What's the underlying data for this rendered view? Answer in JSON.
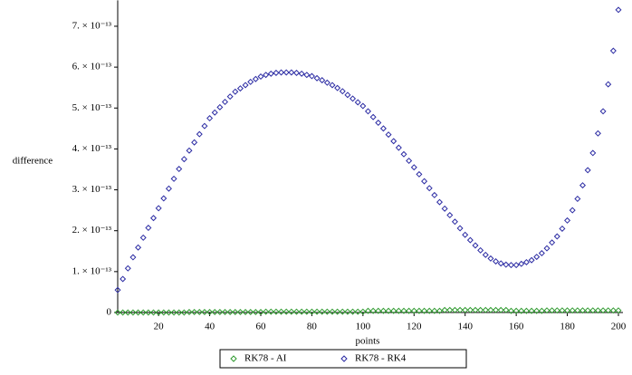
{
  "chart_data": {
    "type": "scatter",
    "x_label": "points",
    "y_label": "difference",
    "x": [
      4,
      6,
      8,
      10,
      12,
      14,
      16,
      18,
      20,
      22,
      24,
      26,
      28,
      30,
      32,
      34,
      36,
      38,
      40,
      42,
      44,
      46,
      48,
      50,
      52,
      54,
      56,
      58,
      60,
      62,
      64,
      66,
      68,
      70,
      72,
      74,
      76,
      78,
      80,
      82,
      84,
      86,
      88,
      90,
      92,
      94,
      96,
      98,
      100,
      102,
      104,
      106,
      108,
      110,
      112,
      114,
      116,
      118,
      120,
      122,
      124,
      126,
      128,
      130,
      132,
      134,
      136,
      138,
      140,
      142,
      144,
      146,
      148,
      150,
      152,
      154,
      156,
      158,
      160,
      162,
      164,
      166,
      168,
      170,
      172,
      174,
      176,
      178,
      180,
      182,
      184,
      186,
      188,
      190,
      192,
      194,
      196,
      198,
      200
    ],
    "series": [
      {
        "name": "RK78 - AI",
        "color": "#2f9a2f",
        "values": [
          0,
          0,
          0,
          0,
          0,
          0,
          0,
          0,
          0,
          0,
          0,
          0,
          0,
          0,
          1e-15,
          1e-15,
          1e-15,
          1e-15,
          1e-15,
          1e-15,
          1e-15,
          1e-15,
          1e-15,
          1e-15,
          1e-15,
          1e-15,
          1e-15,
          1e-15,
          1e-15,
          2e-15,
          2e-15,
          2e-15,
          2e-15,
          2e-15,
          2e-15,
          2e-15,
          2e-15,
          2e-15,
          2e-15,
          2e-15,
          2e-15,
          2e-15,
          2e-15,
          2e-15,
          2e-15,
          2e-15,
          2e-15,
          2e-15,
          2e-15,
          4e-15,
          4e-15,
          4e-15,
          4e-15,
          4e-15,
          4e-15,
          4e-15,
          4e-15,
          4e-15,
          4e-15,
          4e-15,
          4e-15,
          4e-15,
          4e-15,
          4e-15,
          6e-15,
          6e-15,
          6e-15,
          6e-15,
          6e-15,
          6e-15,
          6e-15,
          6e-15,
          6e-15,
          6e-15,
          6e-15,
          6e-15,
          6e-15,
          4e-15,
          4e-15,
          4e-15,
          4e-15,
          4e-15,
          4e-15,
          4e-15,
          5e-15,
          5e-15,
          5e-15,
          5e-15,
          5e-15,
          5e-15,
          5e-15,
          5e-15,
          5e-15,
          5e-15,
          5e-15,
          5e-15,
          5e-15,
          5e-15,
          5e-15
        ]
      },
      {
        "name": "RK78 - RK4",
        "color": "#2b2ba3",
        "values": [
          5.5e-14,
          8.2e-14,
          1.08e-13,
          1.35e-13,
          1.59e-13,
          1.83e-13,
          2.07e-13,
          2.31e-13,
          2.55e-13,
          2.79e-13,
          3.03e-13,
          3.27e-13,
          3.51e-13,
          3.75e-13,
          3.96e-13,
          4.16e-13,
          4.36e-13,
          4.56e-13,
          4.75e-13,
          4.89e-13,
          5.02e-13,
          5.15e-13,
          5.28e-13,
          5.4e-13,
          5.48e-13,
          5.56e-13,
          5.64e-13,
          5.71e-13,
          5.77e-13,
          5.81e-13,
          5.84e-13,
          5.86e-13,
          5.87e-13,
          5.87e-13,
          5.87e-13,
          5.86e-13,
          5.84e-13,
          5.81e-13,
          5.78e-13,
          5.73e-13,
          5.68e-13,
          5.62e-13,
          5.56e-13,
          5.49e-13,
          5.41e-13,
          5.32e-13,
          5.23e-13,
          5.14e-13,
          5.05e-13,
          4.92e-13,
          4.78e-13,
          4.64e-13,
          4.5e-13,
          4.35e-13,
          4.19e-13,
          4.03e-13,
          3.87e-13,
          3.71e-13,
          3.55e-13,
          3.38e-13,
          3.21e-13,
          3.04e-13,
          2.87e-13,
          2.7e-13,
          2.54e-13,
          2.38e-13,
          2.22e-13,
          2.06e-13,
          1.9e-13,
          1.77e-13,
          1.64e-13,
          1.52e-13,
          1.41e-13,
          1.32e-13,
          1.25e-13,
          1.2e-13,
          1.17e-13,
          1.16e-13,
          1.16e-13,
          1.19e-13,
          1.23e-13,
          1.28e-13,
          1.36e-13,
          1.45e-13,
          1.57e-13,
          1.71e-13,
          1.86e-13,
          2.05e-13,
          2.25e-13,
          2.5e-13,
          2.78e-13,
          3.11e-13,
          3.48e-13,
          3.9e-13,
          4.38e-13,
          4.92e-13,
          5.58e-13,
          6.4e-13,
          7.4e-13
        ]
      }
    ],
    "xlim": [
      4,
      200
    ],
    "xticks": [
      20,
      40,
      60,
      80,
      100,
      120,
      140,
      160,
      180,
      200
    ],
    "ylim": [
      0,
      7.5e-13
    ],
    "yticks": [
      0,
      {
        "value": 1e-13,
        "label": "1. × 10⁻¹³"
      },
      {
        "value": 2e-13,
        "label": "2. × 10⁻¹³"
      },
      {
        "value": 3e-13,
        "label": "3. × 10⁻¹³"
      },
      {
        "value": 4e-13,
        "label": "4. × 10⁻¹³"
      },
      {
        "value": 5e-13,
        "label": "5. × 10⁻¹³"
      },
      {
        "value": 6e-13,
        "label": "6. × 10⁻¹³"
      },
      {
        "value": 7e-13,
        "label": "7. × 10⁻¹³"
      }
    ],
    "legend": "bottom"
  }
}
